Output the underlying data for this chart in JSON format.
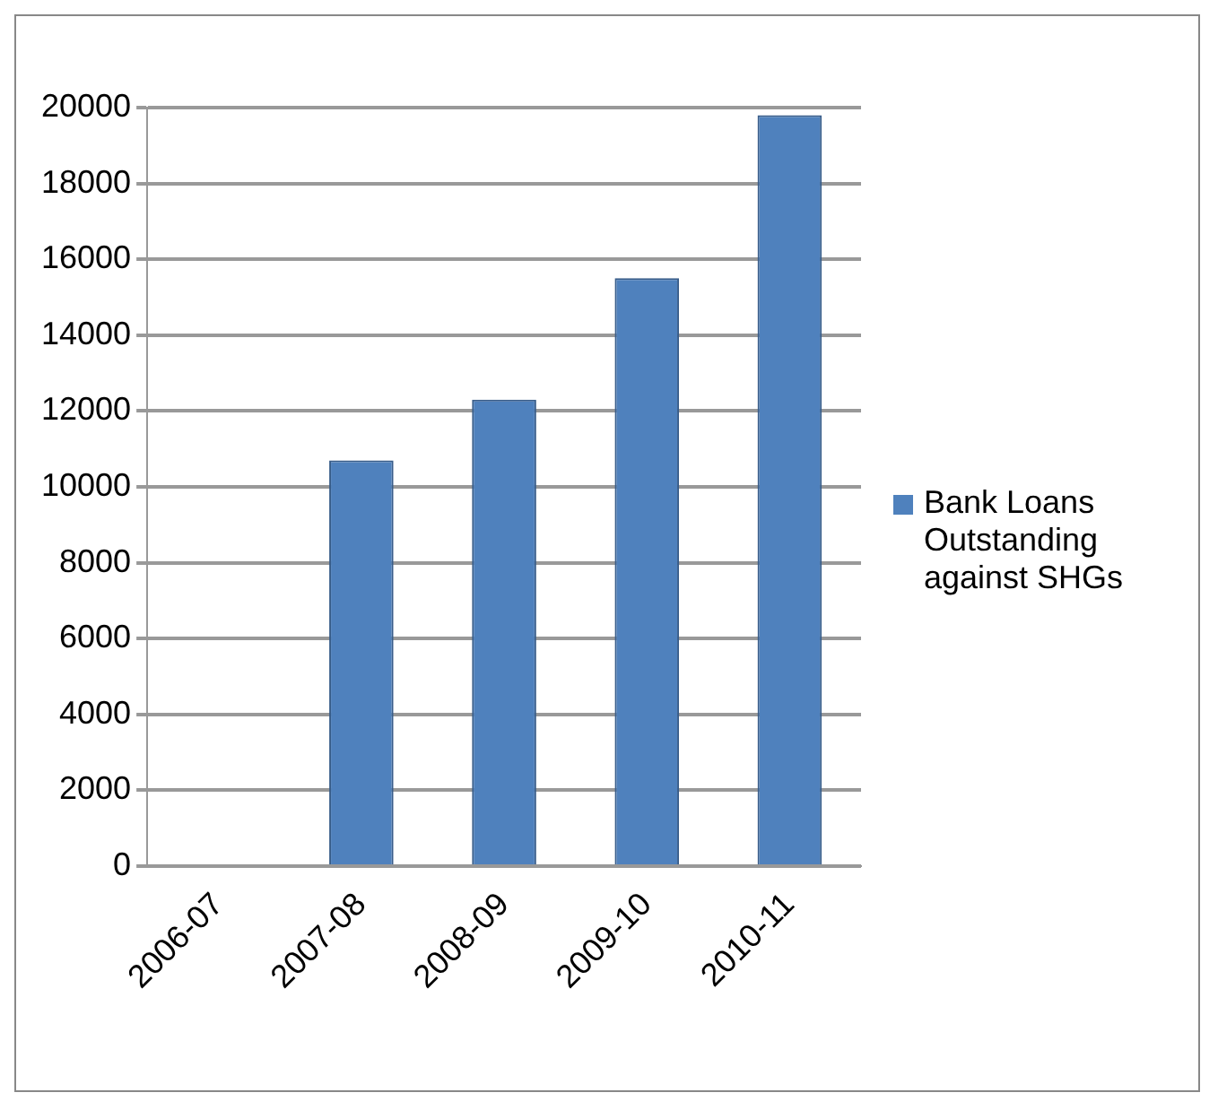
{
  "chart_data": {
    "type": "bar",
    "categories": [
      "2006-07",
      "2007-08",
      "2008-09",
      "2009-10",
      "2010-11"
    ],
    "series": [
      {
        "name": "Bank Loans Outstanding against SHGs",
        "color": "#4f81bd",
        "values": [
          0,
          10700,
          12300,
          15500,
          19800
        ]
      }
    ],
    "ylim": [
      0,
      20000
    ],
    "yticks": [
      0,
      2000,
      4000,
      6000,
      8000,
      10000,
      12000,
      14000,
      16000,
      18000,
      20000
    ],
    "grid": "y",
    "legend": "right"
  }
}
